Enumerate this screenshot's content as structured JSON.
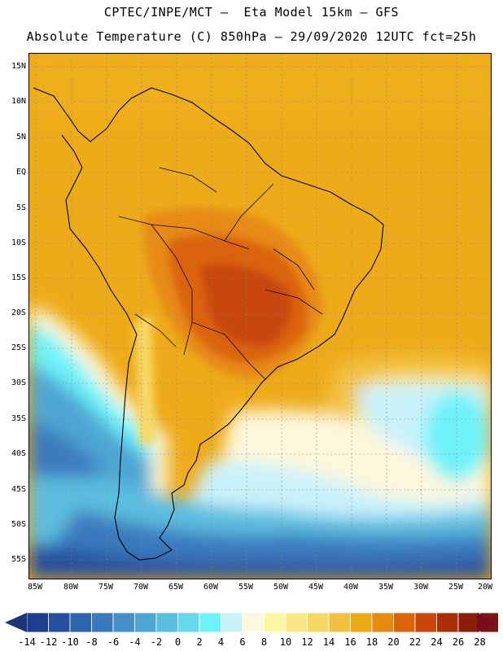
{
  "header": {
    "line1": "CPTEC/INPE/MCT –  Eta Model 15km – GFS",
    "line2": "Absolute Temperature (C) 850hPa – 29/09/2020 12UTC fct=25h"
  },
  "map": {
    "lat_labels": [
      "15N",
      "10N",
      "5N",
      "EQ",
      "5S",
      "10S",
      "15S",
      "20S",
      "25S",
      "30S",
      "35S",
      "40S",
      "45S",
      "50S",
      "55S"
    ],
    "lon_labels": [
      "85W",
      "80W",
      "75W",
      "70W",
      "65W",
      "60W",
      "55W",
      "50W",
      "45W",
      "40W",
      "35W",
      "30W",
      "25W",
      "20W"
    ],
    "gridlines": true
  },
  "colorbar": {
    "labels": [
      "-14",
      "-12",
      "-10",
      "-8",
      "-6",
      "-4",
      "-2",
      "0",
      "2",
      "4",
      "6",
      "8",
      "10",
      "12",
      "14",
      "16",
      "18",
      "20",
      "22",
      "24",
      "26",
      "28"
    ],
    "colors": [
      "#1d3d8f",
      "#25509e",
      "#2e63ae",
      "#3a79bd",
      "#4590c8",
      "#4ea6d3",
      "#5bbde0",
      "#66d8ec",
      "#6ef2fa",
      "#c9f2fb",
      "#fdf8dc",
      "#fcf7a0",
      "#fbe885",
      "#f8d865",
      "#f3c140",
      "#eeab19",
      "#e78a12",
      "#dc640c",
      "#c84709",
      "#ac2e08",
      "#8a1e0b",
      "#7c1414"
    ],
    "min_arrow_color": "#1c3478",
    "max_arrow_color": "#7a0b1e"
  }
}
